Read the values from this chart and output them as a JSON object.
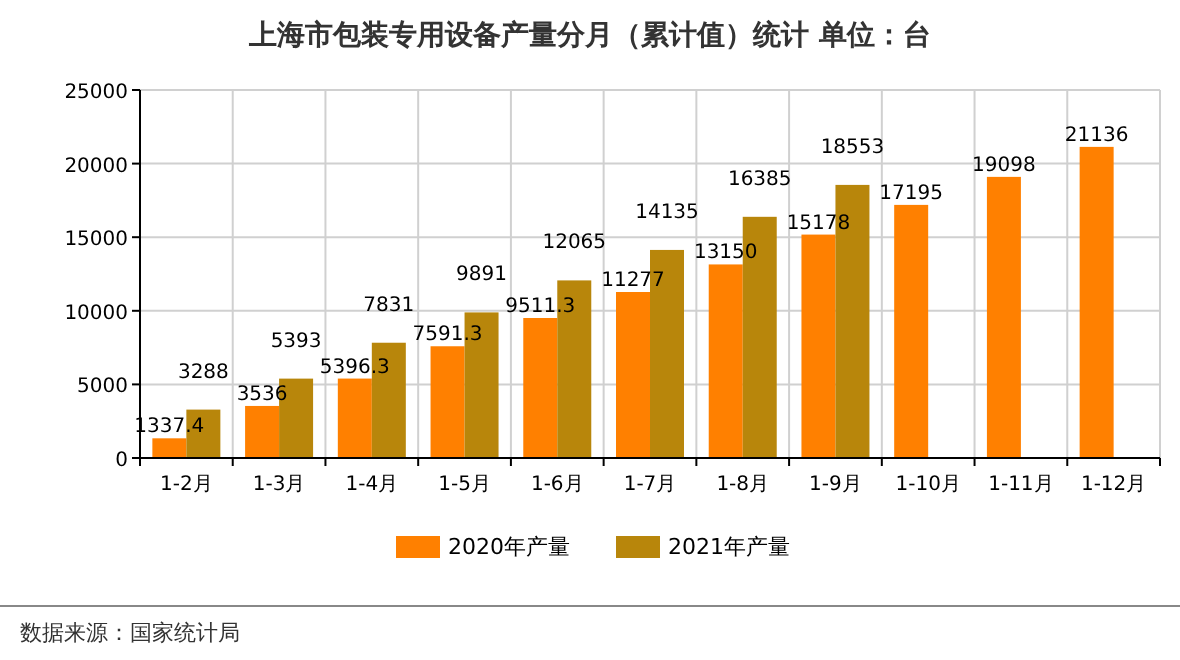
{
  "chart_data": {
    "type": "bar",
    "title": "上海市包装专用设备产量分月（累计值）统计 单位：台",
    "categories": [
      "1-2月",
      "1-3月",
      "1-4月",
      "1-5月",
      "1-6月",
      "1-7月",
      "1-8月",
      "1-9月",
      "1-10月",
      "1-11月",
      "1-12月"
    ],
    "series": [
      {
        "name": "2020年产量",
        "color": "#ff8000",
        "values": [
          1337.4,
          3536,
          5396.3,
          7591.3,
          9511.3,
          11277,
          13150,
          15178,
          17195,
          19098,
          21136
        ]
      },
      {
        "name": "2021年产量",
        "color": "#b8860b",
        "values": [
          3288,
          5393,
          7831,
          9891,
          12065,
          14135,
          16385,
          18553,
          null,
          null,
          null
        ]
      }
    ],
    "ylim": [
      0,
      25000
    ],
    "yticks": [
      0,
      5000,
      10000,
      15000,
      20000,
      25000
    ],
    "grid": true,
    "legend": "bottom",
    "data_labels": true,
    "annotations": [
      "数据来源：国家统计局"
    ]
  }
}
